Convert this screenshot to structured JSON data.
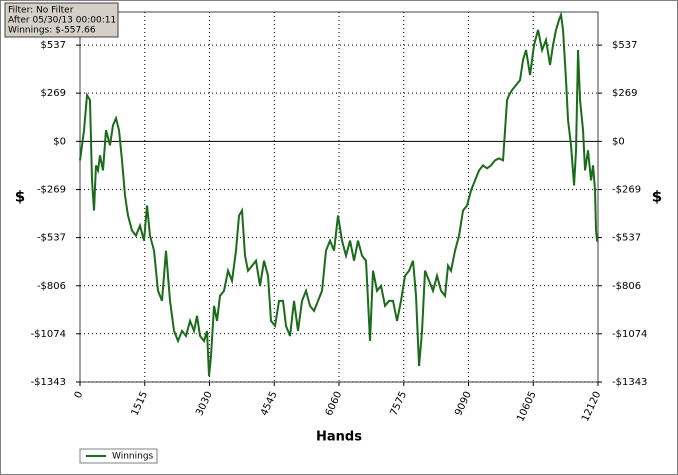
{
  "chart_data": {
    "type": "line",
    "info": [
      "Filter: No Filter",
      "After 05/30/13 00:00:11",
      "Winnings: $-557.66"
    ],
    "x_label": "Hands",
    "y_label": "$",
    "x": [
      0,
      94,
      164,
      234,
      281,
      328,
      374,
      421,
      468,
      538,
      608,
      702,
      772,
      842,
      913,
      983,
      1053,
      1123,
      1217,
      1310,
      1404,
      1498,
      1568,
      1638,
      1732,
      1825,
      1919,
      2012,
      2106,
      2200,
      2293,
      2387,
      2480,
      2574,
      2668,
      2738,
      2808,
      2902,
      2972,
      3019,
      3065,
      3136,
      3206,
      3276,
      3370,
      3463,
      3557,
      3650,
      3721,
      3791,
      3861,
      3931,
      4025,
      4118,
      4212,
      4306,
      4399,
      4469,
      4563,
      4657,
      4750,
      4820,
      4914,
      5008,
      5101,
      5195,
      5288,
      5382,
      5476,
      5569,
      5663,
      5756,
      5850,
      5944,
      6037,
      6131,
      6224,
      6318,
      6412,
      6505,
      6599,
      6692,
      6786,
      6856,
      6950,
      7043,
      7137,
      7231,
      7324,
      7418,
      7511,
      7605,
      7699,
      7792,
      7862,
      7933,
      8003,
      8073,
      8167,
      8260,
      8354,
      8447,
      8541,
      8611,
      8681,
      8775,
      8869,
      8962,
      9056,
      9149,
      9243,
      9337,
      9430,
      9524,
      9617,
      9711,
      9805,
      9898,
      9945,
      9992,
      10039,
      10109,
      10202,
      10296,
      10366,
      10436,
      10530,
      10624,
      10717,
      10811,
      10904,
      10998,
      11068,
      11138,
      11209,
      11255,
      11302,
      11372,
      11419,
      11489,
      11560,
      11606,
      11653,
      11700,
      11770,
      11817,
      11887,
      11957,
      12004,
      12051,
      12074,
      12098,
      12120
    ],
    "series": [
      {
        "name": "Winnings",
        "color": "#1a6b1a",
        "values": [
          -106,
          62,
          258,
          230,
          -218,
          -386,
          -134,
          -162,
          -78,
          -162,
          62,
          -22,
          90,
          129,
          62,
          -106,
          -302,
          -414,
          -498,
          -526,
          -470,
          -554,
          -358,
          -526,
          -610,
          -834,
          -890,
          -610,
          -890,
          -1058,
          -1114,
          -1058,
          -1086,
          -1002,
          -1058,
          -974,
          -1086,
          -1114,
          -1058,
          -1310,
          -1198,
          -918,
          -1002,
          -862,
          -834,
          -722,
          -778,
          -610,
          -414,
          -386,
          -638,
          -722,
          -694,
          -666,
          -806,
          -666,
          -750,
          -1002,
          -1030,
          -890,
          -890,
          -1030,
          -1086,
          -890,
          -1058,
          -890,
          -834,
          -918,
          -946,
          -890,
          -834,
          -610,
          -554,
          -610,
          -414,
          -554,
          -638,
          -554,
          -666,
          -554,
          -638,
          -666,
          -1114,
          -722,
          -834,
          -806,
          -918,
          -890,
          -890,
          -1002,
          -890,
          -750,
          -722,
          -666,
          -862,
          -1254,
          -1058,
          -722,
          -778,
          -834,
          -750,
          -834,
          -862,
          -694,
          -722,
          -610,
          -526,
          -386,
          -358,
          -274,
          -218,
          -162,
          -134,
          -151,
          -134,
          -106,
          -95,
          -106,
          62,
          230,
          258,
          286,
          314,
          342,
          454,
          510,
          370,
          538,
          622,
          510,
          566,
          426,
          538,
          622,
          678,
          706,
          622,
          342,
          118,
          -22,
          -246,
          -50,
          510,
          230,
          62,
          -162,
          -50,
          -218,
          -134,
          -274,
          -498,
          -554,
          -557.66
        ]
      }
    ],
    "xlim": [
      0,
      12120
    ],
    "xticks": [
      0,
      1515,
      3030,
      4545,
      6060,
      7575,
      9090,
      10605,
      12120
    ],
    "ylim": [
      -1343,
      722
    ],
    "yticks": [
      {
        "value": 537,
        "label": "$537"
      },
      {
        "value": 269,
        "label": "$269"
      },
      {
        "value": 0,
        "label": "$0"
      },
      {
        "value": -269,
        "label": "-$269"
      },
      {
        "value": -537,
        "label": "-$537"
      },
      {
        "value": -806,
        "label": "-$806"
      },
      {
        "value": -1074,
        "label": "-$1074"
      },
      {
        "value": -1343,
        "label": "-$1343"
      }
    ],
    "grid": true
  }
}
